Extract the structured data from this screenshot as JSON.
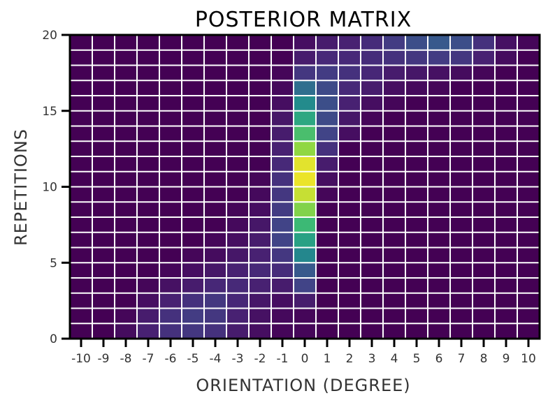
{
  "chart_data": {
    "type": "heatmap",
    "title": "POSTERIOR MATRIX",
    "xlabel": "ORIENTATION (DEGREE)",
    "ylabel": "REPETITIONS",
    "x_ticks": [
      "-10",
      "-9",
      "-8",
      "-7",
      "-6",
      "-5",
      "-4",
      "-3",
      "-2",
      "-1",
      "0",
      "1",
      "2",
      "3",
      "4",
      "5",
      "6",
      "7",
      "8",
      "9",
      "10"
    ],
    "y_ticks": [
      "0",
      "5",
      "10",
      "15",
      "20"
    ],
    "xlim": [
      -10.5,
      10.5
    ],
    "ylim": [
      0,
      20
    ],
    "colormap": "viridis",
    "grid": true,
    "rows_bottom_to_top": [
      [
        0.0,
        0.0,
        0.04,
        0.12,
        0.18,
        0.2,
        0.18,
        0.1,
        0.05,
        0.02,
        0.02,
        0.0,
        0.0,
        0.0,
        0.0,
        0.0,
        0.0,
        0.0,
        0.0,
        0.0,
        0.0
      ],
      [
        0.0,
        0.0,
        0.02,
        0.1,
        0.18,
        0.22,
        0.2,
        0.12,
        0.06,
        0.03,
        0.02,
        0.0,
        0.0,
        0.0,
        0.0,
        0.0,
        0.0,
        0.0,
        0.0,
        0.0,
        0.0
      ],
      [
        0.0,
        0.0,
        0.0,
        0.05,
        0.12,
        0.18,
        0.2,
        0.14,
        0.08,
        0.05,
        0.1,
        0.0,
        0.0,
        0.0,
        0.0,
        0.0,
        0.0,
        0.0,
        0.0,
        0.0,
        0.0
      ],
      [
        0.0,
        0.0,
        0.0,
        0.02,
        0.06,
        0.1,
        0.14,
        0.15,
        0.12,
        0.1,
        0.25,
        0.0,
        0.0,
        0.0,
        0.0,
        0.0,
        0.0,
        0.0,
        0.0,
        0.0,
        0.0
      ],
      [
        0.0,
        0.0,
        0.0,
        0.0,
        0.02,
        0.05,
        0.08,
        0.12,
        0.15,
        0.16,
        0.35,
        0.0,
        0.0,
        0.0,
        0.0,
        0.0,
        0.0,
        0.0,
        0.0,
        0.0,
        0.0
      ],
      [
        0.0,
        0.0,
        0.0,
        0.0,
        0.0,
        0.02,
        0.04,
        0.08,
        0.12,
        0.2,
        0.58,
        0.0,
        0.0,
        0.0,
        0.0,
        0.0,
        0.0,
        0.0,
        0.0,
        0.0,
        0.0
      ],
      [
        0.0,
        0.0,
        0.0,
        0.0,
        0.0,
        0.0,
        0.02,
        0.05,
        0.1,
        0.25,
        0.68,
        0.0,
        0.0,
        0.0,
        0.0,
        0.0,
        0.0,
        0.0,
        0.0,
        0.0,
        0.0
      ],
      [
        0.0,
        0.0,
        0.0,
        0.0,
        0.0,
        0.0,
        0.0,
        0.03,
        0.08,
        0.25,
        0.76,
        0.0,
        0.0,
        0.0,
        0.0,
        0.0,
        0.0,
        0.0,
        0.0,
        0.0,
        0.0
      ],
      [
        0.0,
        0.0,
        0.0,
        0.0,
        0.0,
        0.0,
        0.0,
        0.02,
        0.05,
        0.22,
        0.86,
        0.0,
        0.0,
        0.0,
        0.0,
        0.0,
        0.0,
        0.0,
        0.0,
        0.0,
        0.0
      ],
      [
        0.0,
        0.0,
        0.0,
        0.0,
        0.0,
        0.0,
        0.0,
        0.0,
        0.03,
        0.2,
        0.94,
        0.02,
        0.0,
        0.0,
        0.0,
        0.0,
        0.0,
        0.0,
        0.0,
        0.0,
        0.0
      ],
      [
        0.0,
        0.0,
        0.0,
        0.0,
        0.0,
        0.0,
        0.0,
        0.0,
        0.02,
        0.18,
        0.98,
        0.05,
        0.0,
        0.0,
        0.0,
        0.0,
        0.0,
        0.0,
        0.0,
        0.0,
        0.0
      ],
      [
        0.0,
        0.0,
        0.0,
        0.0,
        0.0,
        0.0,
        0.0,
        0.0,
        0.0,
        0.15,
        0.97,
        0.1,
        0.0,
        0.0,
        0.0,
        0.0,
        0.0,
        0.0,
        0.0,
        0.0,
        0.0
      ],
      [
        0.0,
        0.0,
        0.0,
        0.0,
        0.0,
        0.0,
        0.0,
        0.0,
        0.0,
        0.12,
        0.88,
        0.18,
        0.0,
        0.0,
        0.0,
        0.0,
        0.0,
        0.0,
        0.0,
        0.0,
        0.0
      ],
      [
        0.0,
        0.0,
        0.0,
        0.0,
        0.0,
        0.0,
        0.0,
        0.0,
        0.0,
        0.1,
        0.78,
        0.25,
        0.05,
        0.0,
        0.0,
        0.0,
        0.0,
        0.0,
        0.0,
        0.0,
        0.0
      ],
      [
        0.0,
        0.0,
        0.0,
        0.0,
        0.0,
        0.0,
        0.0,
        0.0,
        0.0,
        0.08,
        0.7,
        0.28,
        0.08,
        0.02,
        0.0,
        0.0,
        0.0,
        0.0,
        0.0,
        0.0,
        0.0
      ],
      [
        0.0,
        0.0,
        0.0,
        0.0,
        0.0,
        0.0,
        0.0,
        0.0,
        0.0,
        0.05,
        0.6,
        0.3,
        0.12,
        0.05,
        0.02,
        0.0,
        0.0,
        0.0,
        0.0,
        0.0,
        0.0
      ],
      [
        0.0,
        0.0,
        0.0,
        0.0,
        0.0,
        0.0,
        0.0,
        0.0,
        0.0,
        0.03,
        0.45,
        0.28,
        0.15,
        0.1,
        0.05,
        0.03,
        0.02,
        0.0,
        0.0,
        0.0,
        0.0
      ],
      [
        0.0,
        0.0,
        0.0,
        0.0,
        0.0,
        0.0,
        0.0,
        0.0,
        0.0,
        0.02,
        0.2,
        0.22,
        0.18,
        0.14,
        0.1,
        0.08,
        0.06,
        0.04,
        0.02,
        0.0,
        0.0
      ],
      [
        0.0,
        0.0,
        0.0,
        0.0,
        0.0,
        0.0,
        0.0,
        0.0,
        0.0,
        0.0,
        0.1,
        0.15,
        0.15,
        0.16,
        0.18,
        0.2,
        0.22,
        0.2,
        0.12,
        0.04,
        0.0
      ],
      [
        0.0,
        0.0,
        0.0,
        0.0,
        0.0,
        0.0,
        0.0,
        0.0,
        0.0,
        0.0,
        0.05,
        0.1,
        0.12,
        0.16,
        0.22,
        0.3,
        0.35,
        0.3,
        0.18,
        0.06,
        0.02
      ]
    ]
  }
}
